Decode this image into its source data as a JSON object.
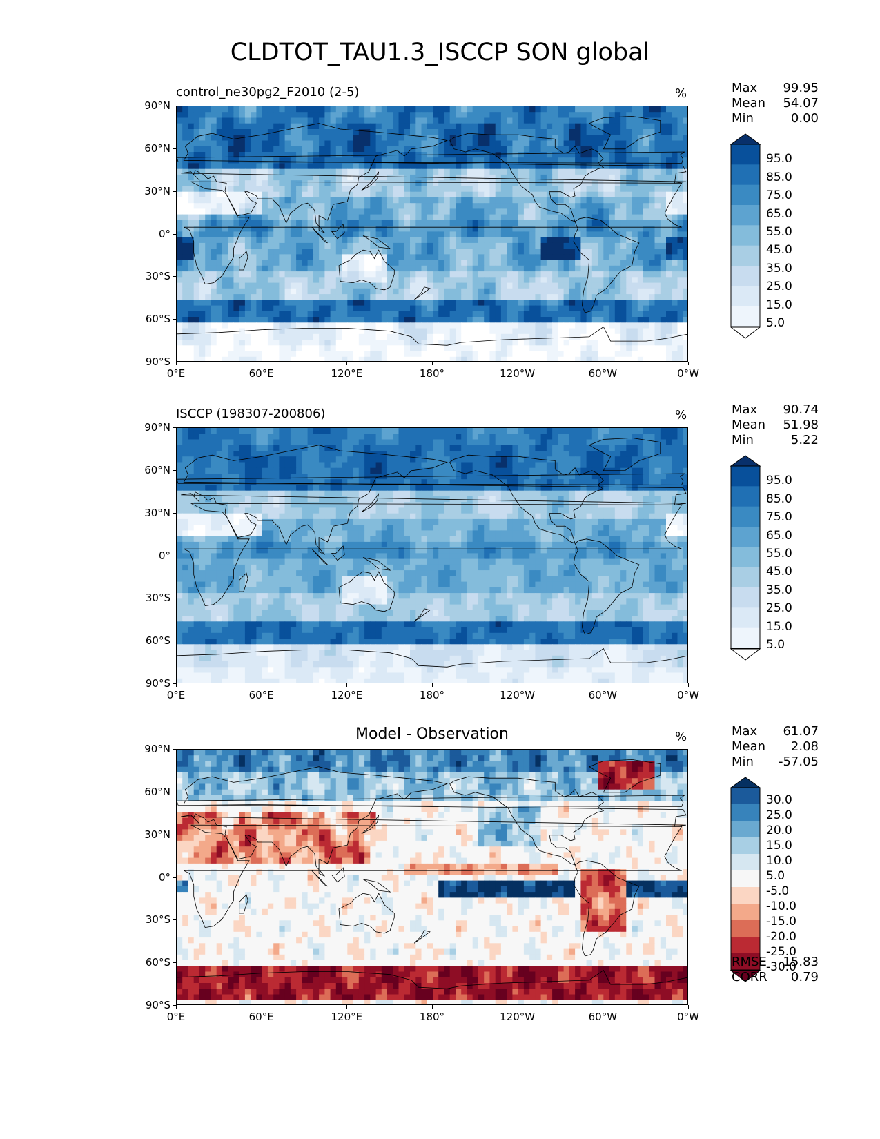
{
  "title": "CLDTOT_TAU1.3_ISCCP SON global",
  "lat_ticks": [
    "90°N",
    "60°N",
    "30°N",
    "0°",
    "30°S",
    "60°S",
    "90°S"
  ],
  "lon_ticks": [
    "0°E",
    "60°E",
    "120°E",
    "180°",
    "120°W",
    "60°W",
    "0°W"
  ],
  "panels": [
    {
      "title_left": "control_ne30pg2_F2010 (2-5)",
      "title_center": "",
      "units": "%",
      "stats": [
        {
          "label": "Max",
          "value": "99.95"
        },
        {
          "label": "Mean",
          "value": "54.07"
        },
        {
          "label": "Min",
          "value": "0.00"
        }
      ],
      "colorbar_labels": [
        "95.0",
        "85.0",
        "75.0",
        "65.0",
        "55.0",
        "45.0",
        "35.0",
        "25.0",
        "15.0",
        "5.0"
      ],
      "colorbar_colors": [
        "#08306b",
        "#08509b",
        "#2070b4",
        "#3a8ac2",
        "#5da3d0",
        "#84bcdb",
        "#a9cee4",
        "#c8dcef",
        "#dbe9f6",
        "#eef5fc",
        "#ffffff"
      ]
    },
    {
      "title_left": "ISCCP (198307-200806)",
      "title_center": "",
      "units": "%",
      "stats": [
        {
          "label": "Max",
          "value": "90.74"
        },
        {
          "label": "Mean",
          "value": "51.98"
        },
        {
          "label": "Min",
          "value": "5.22"
        }
      ],
      "colorbar_labels": [
        "95.0",
        "85.0",
        "75.0",
        "65.0",
        "55.0",
        "45.0",
        "35.0",
        "25.0",
        "15.0",
        "5.0"
      ],
      "colorbar_colors": [
        "#08306b",
        "#08509b",
        "#2070b4",
        "#3a8ac2",
        "#5da3d0",
        "#84bcdb",
        "#a9cee4",
        "#c8dcef",
        "#dbe9f6",
        "#eef5fc",
        "#ffffff"
      ]
    },
    {
      "title_left": "",
      "title_center": "Model - Observation",
      "units": "%",
      "stats": [
        {
          "label": "Max",
          "value": "61.07"
        },
        {
          "label": "Mean",
          "value": "2.08"
        },
        {
          "label": "Min",
          "value": "-57.05"
        }
      ],
      "colorbar_labels": [
        "30.0",
        "25.0",
        "20.0",
        "15.0",
        "10.0",
        "5.0",
        "-5.0",
        "-10.0",
        "-15.0",
        "-20.0",
        "-25.0",
        "-30.0"
      ],
      "colorbar_colors": [
        "#053061",
        "#1b5a9b",
        "#3783bb",
        "#6aa9d0",
        "#a8cfe4",
        "#d6e7f1",
        "#f7f7f7",
        "#fbd6c3",
        "#f3a98a",
        "#dc6d57",
        "#bb2a33",
        "#8e0d25",
        "#67001f"
      ],
      "rmse": [
        {
          "label": "RMSE",
          "value": "15.83"
        },
        {
          "label": "CORR",
          "value": "0.79"
        }
      ]
    }
  ]
}
